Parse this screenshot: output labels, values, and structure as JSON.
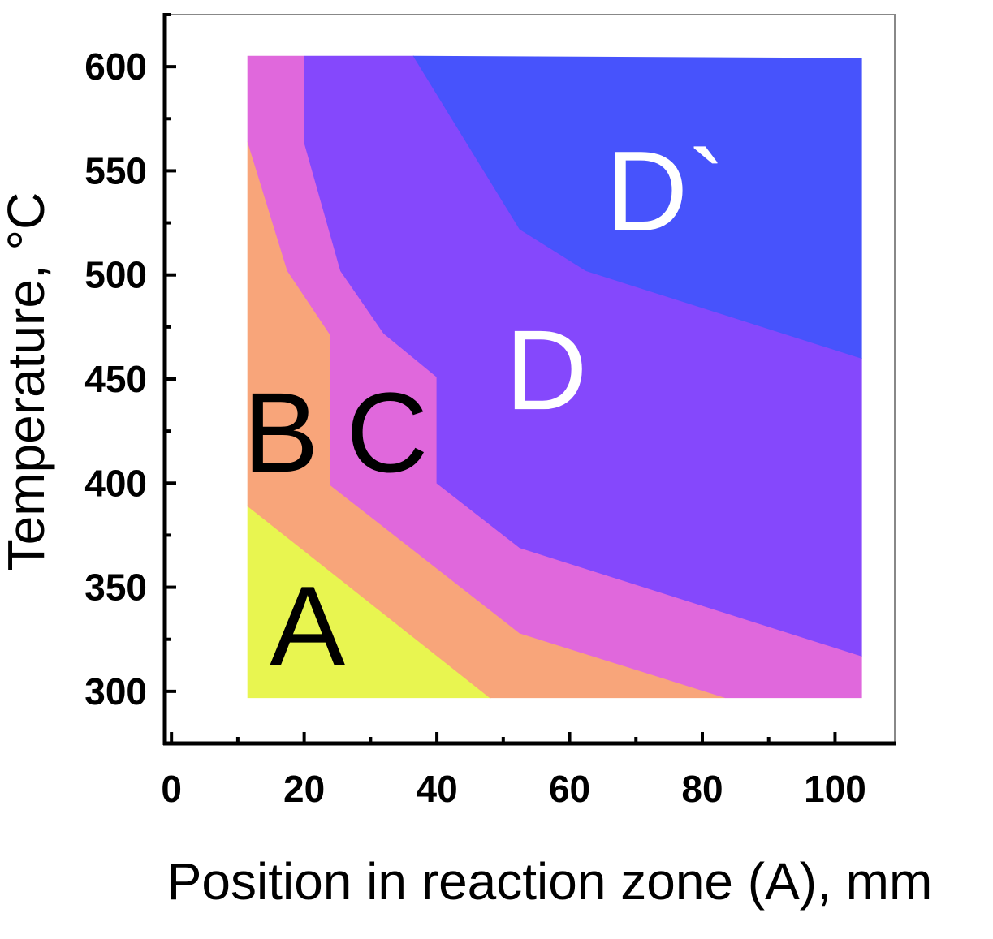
{
  "chart_data": {
    "type": "area",
    "xlabel": "Position in reaction zone (A), mm",
    "ylabel": "Temperature, °C",
    "xlim": [
      -1,
      109
    ],
    "ylim": [
      275,
      625
    ],
    "x_ticks": [
      0,
      20,
      40,
      60,
      80,
      100
    ],
    "y_ticks": [
      300,
      350,
      400,
      450,
      500,
      550,
      600
    ],
    "x_minor_step": 10,
    "y_minor_step": 25,
    "grid": false,
    "regions": [
      {
        "name": "A",
        "color": "#e8f550",
        "label_color": "#000000",
        "label_at": [
          20.5,
          332
        ],
        "polygon": [
          [
            11.5,
            297
          ],
          [
            11.5,
            389
          ],
          [
            48,
            297
          ]
        ]
      },
      {
        "name": "B",
        "color": "#f8a57a",
        "label_color": "#000000",
        "label_at": [
          16.5,
          425
        ],
        "polygon": [
          [
            11.5,
            389
          ],
          [
            11.5,
            564
          ],
          [
            17.5,
            502
          ],
          [
            24,
            471
          ],
          [
            24,
            399
          ],
          [
            52.5,
            328
          ],
          [
            83.5,
            297
          ],
          [
            48,
            297
          ]
        ]
      },
      {
        "name": "C",
        "color": "#e068dc",
        "label_color": "#000000",
        "label_at": [
          32.5,
          425
        ],
        "polygon": [
          [
            11.5,
            564
          ],
          [
            11.5,
            605
          ],
          [
            20,
            605
          ],
          [
            20,
            564
          ],
          [
            25.5,
            502
          ],
          [
            32,
            472
          ],
          [
            40,
            451
          ],
          [
            40,
            400
          ],
          [
            52.5,
            369
          ],
          [
            104,
            317
          ],
          [
            104,
            297
          ],
          [
            83.5,
            297
          ],
          [
            52.5,
            328
          ],
          [
            24,
            399
          ],
          [
            24,
            471
          ],
          [
            17.5,
            502
          ]
        ]
      },
      {
        "name": "D",
        "color": "#8548fc",
        "label_color": "#ffffff",
        "label_at": [
          56.5,
          455
        ],
        "polygon": [
          [
            20,
            605
          ],
          [
            36.5,
            605
          ],
          [
            52.5,
            522
          ],
          [
            62.5,
            502
          ],
          [
            104,
            460
          ],
          [
            104,
            317
          ],
          [
            52.5,
            369
          ],
          [
            40,
            400
          ],
          [
            40,
            451
          ],
          [
            32,
            472
          ],
          [
            25.5,
            502
          ],
          [
            20,
            564
          ]
        ]
      },
      {
        "name": "D`",
        "color": "#4753fc",
        "label_color": "#ffffff",
        "label_at": [
          74.5,
          541
        ],
        "polygon": [
          [
            36.5,
            605
          ],
          [
            104,
            604
          ],
          [
            104,
            460
          ],
          [
            62.5,
            502
          ],
          [
            52.5,
            522
          ]
        ]
      }
    ]
  }
}
